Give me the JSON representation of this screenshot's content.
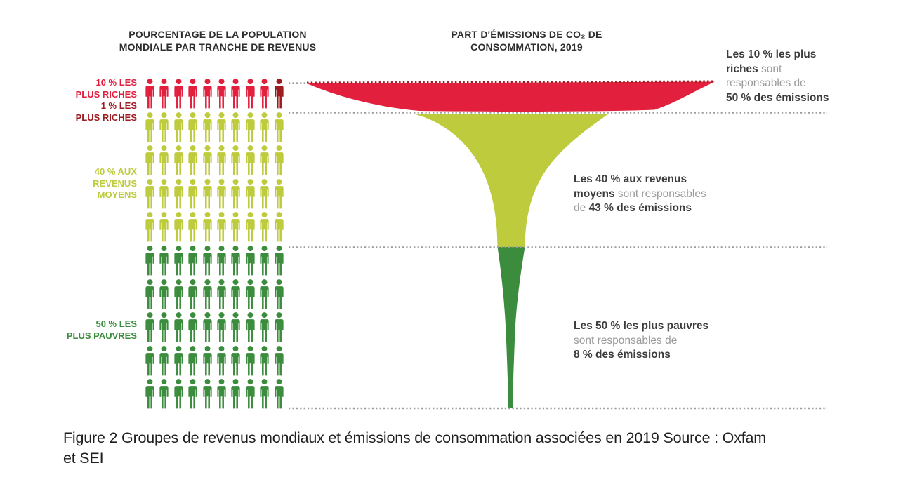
{
  "figure": {
    "left_title": "POURCENTAGE DE LA POPULATION\nMONDIALE PAR TRANCHE DE REVENUS",
    "right_title": "PART D'ÉMISSIONS DE CO₂ DE\nCONSOMMATION, 2019",
    "caption": "Figure 2 Groupes de revenus mondiaux et émissions de consommation associées en 2019 Source : Oxfam\net SEI"
  },
  "row_labels": [
    {
      "text": "10 % LES\nPLUS RICHES",
      "color": "#e2203e"
    },
    {
      "text": "1 % LES\nPLUS RICHES",
      "color": "#9e1b22"
    },
    {
      "text": "40 % AUX\nREVENUS\nMOYENS",
      "color": "#bdcb3d"
    },
    {
      "text": "50 % LES\nPLUS PAUVRES",
      "color": "#3b8c3c"
    }
  ],
  "annotations": [
    {
      "name": "rich",
      "segments": [
        {
          "t": "Les 10 % les plus\nriches",
          "c": "b"
        },
        {
          "t": " sont\nresponsables de\n",
          "c": "g"
        },
        {
          "t": "50 % des émissions",
          "c": "b"
        }
      ]
    },
    {
      "name": "middle",
      "segments": [
        {
          "t": "Les 40 % aux revenus\nmoyens",
          "c": "b"
        },
        {
          "t": " sont responsables\nde ",
          "c": "g"
        },
        {
          "t": "43 % des émissions",
          "c": "b"
        }
      ]
    },
    {
      "name": "poor",
      "segments": [
        {
          "t": "Les 50 % les plus pauvres\n",
          "c": "b"
        },
        {
          "t": "sont responsables de\n",
          "c": "g"
        },
        {
          "t": "8 % des émissions",
          "c": "b"
        }
      ]
    }
  ],
  "pictogram": {
    "rows": [
      {
        "count": 10,
        "color": "#e2203e",
        "last_color": "#9e1b22"
      },
      {
        "count": 10,
        "color": "#bdcb3d"
      },
      {
        "count": 10,
        "color": "#bdcb3d"
      },
      {
        "count": 10,
        "color": "#bdcb3d"
      },
      {
        "count": 10,
        "color": "#bdcb3d"
      },
      {
        "count": 10,
        "color": "#3b8c3c"
      },
      {
        "count": 10,
        "color": "#3b8c3c"
      },
      {
        "count": 10,
        "color": "#3b8c3c"
      },
      {
        "count": 10,
        "color": "#3b8c3c"
      },
      {
        "count": 10,
        "color": "#3b8c3c"
      }
    ]
  },
  "chart_data": {
    "type": "area",
    "title": "PART D'ÉMISSIONS DE CO₂ DE CONSOMMATION, 2019",
    "left_panel_title": "POURCENTAGE DE LA POPULATION MONDIALE PAR TRANCHE DE REVENUS",
    "year": 2019,
    "groups": [
      {
        "label": "10 % les plus riches",
        "population_share_pct": 10,
        "emissions_share_pct": 50,
        "color": "#e2203e"
      },
      {
        "label": "1 % les plus riches",
        "population_share_pct": 1,
        "color": "#9e1b22"
      },
      {
        "label": "40 % aux revenus moyens",
        "population_share_pct": 40,
        "emissions_share_pct": 43,
        "color": "#bdcb3d"
      },
      {
        "label": "50 % les plus pauvres",
        "population_share_pct": 50,
        "emissions_share_pct": 8,
        "color": "#3b8c3c"
      }
    ],
    "colors": {
      "dotted_line": "#9c9c9c",
      "rich_top_border": "#9e1b22",
      "text_dark": "#3c3c3c",
      "text_gray": "#9a9a9a"
    },
    "source": "Oxfam et SEI",
    "pictogram_unit_pct": 1,
    "pictogram_total_icons": 100
  }
}
